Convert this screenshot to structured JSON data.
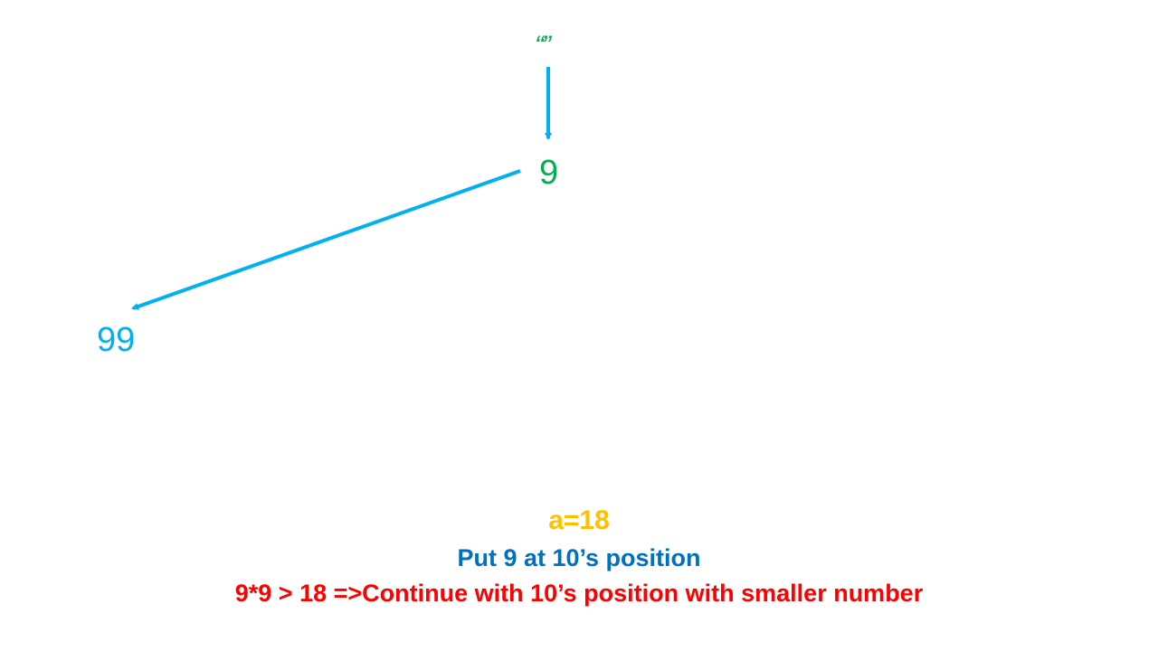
{
  "tree": {
    "root": {
      "label": "“”",
      "color": "#00B050"
    },
    "level1": {
      "label": "9",
      "color": "#00B050"
    },
    "level2": {
      "label": "99",
      "color": "#00B0F0"
    },
    "edge_color": "#00B0F0"
  },
  "captions": {
    "variable": {
      "text": "a=18",
      "color": "#FFC000"
    },
    "step": {
      "text": "Put 9 at 10’s position",
      "color": "#0070C0"
    },
    "decision": {
      "text": "9*9 > 18 =>Continue with 10’s position with smaller number",
      "color": "#FF0000"
    }
  }
}
